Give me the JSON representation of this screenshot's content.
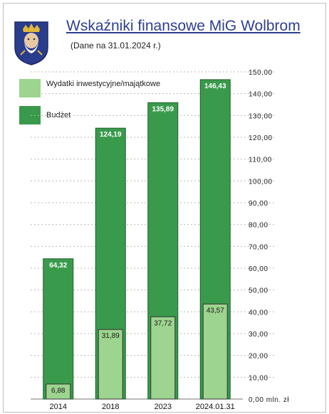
{
  "title": "Wskaźniki finansowe MiG Wolbrom",
  "subtitle": "(Dane na 31.01.2024 r.)",
  "colors": {
    "budget": "#3a9a4c",
    "invest": "#9dd48f",
    "title": "#2e3f8f",
    "crest_blue": "#2a3c8c",
    "crest_gold": "#e0b83a"
  },
  "legend": [
    {
      "label": "Wydatki inwestycyjne/majątkowe",
      "color": "#9dd48f"
    },
    {
      "label": "Budżet",
      "color": "#3a9a4c"
    }
  ],
  "chart_data": {
    "type": "bar",
    "title": "Wskaźniki finansowe MiG Wolbrom",
    "subtitle": "(Dane na 31.01.2024 r.)",
    "categories": [
      "2014",
      "2018",
      "2023",
      "2024.01.31"
    ],
    "series": [
      {
        "name": "Budżet",
        "values": [
          64.32,
          124.19,
          135.89,
          146.43
        ],
        "labels": [
          "64,32",
          "124,19",
          "135,89",
          "146,43"
        ]
      },
      {
        "name": "Wydatki inwestycyjne/majątkowe",
        "values": [
          6.88,
          31.89,
          37.72,
          43.57
        ],
        "labels": [
          "6,88",
          "31,89",
          "37,72",
          "43,57"
        ]
      }
    ],
    "ylim": [
      0,
      150
    ],
    "y_ticks": [
      {
        "value": 0,
        "label": "0,00 mln. zł"
      },
      {
        "value": 10,
        "label": "10,00"
      },
      {
        "value": 20,
        "label": "20,00"
      },
      {
        "value": 30,
        "label": "30,00"
      },
      {
        "value": 40,
        "label": "40,00"
      },
      {
        "value": 50,
        "label": "50,00"
      },
      {
        "value": 60,
        "label": "60,00"
      },
      {
        "value": 70,
        "label": "70,00"
      },
      {
        "value": 80,
        "label": "80,00"
      },
      {
        "value": 90,
        "label": "90,00"
      },
      {
        "value": 100,
        "label": "100,00"
      },
      {
        "value": 110,
        "label": "110,00"
      },
      {
        "value": 120,
        "label": "120,00"
      },
      {
        "value": 130,
        "label": "130,00"
      },
      {
        "value": 140,
        "label": "140,00"
      },
      {
        "value": 150,
        "label": "150,00"
      }
    ],
    "y_axis_position": "right",
    "grid": true,
    "legend_position": "top-left",
    "overlay": true
  }
}
